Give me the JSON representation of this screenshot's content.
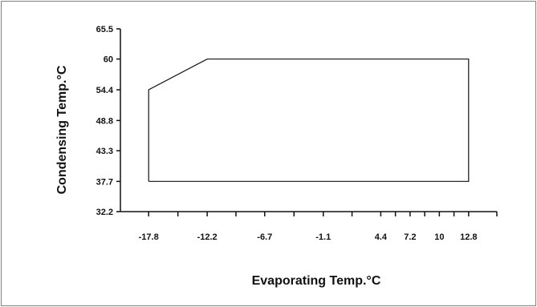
{
  "chart_data": {
    "type": "line",
    "title": "",
    "xlabel": "Evaporating Temp.°C",
    "ylabel": "Condensing Temp.°C",
    "xticks": [
      "-17.8",
      "-12.2",
      "-6.7",
      "-1.1",
      "4.4",
      "7.2",
      "10",
      "12.8"
    ],
    "xtick_values": [
      -17.8,
      -12.2,
      -6.7,
      -1.1,
      4.4,
      7.2,
      10,
      12.8
    ],
    "yticks": [
      "65.5",
      "60",
      "54.4",
      "48.8",
      "43.3",
      "37.7",
      "32.2"
    ],
    "ytick_values": [
      65.5,
      60,
      54.4,
      48.8,
      43.3,
      37.7,
      32.2
    ],
    "xlim": [
      -20.5,
      15.5
    ],
    "ylim": [
      32.2,
      65.5
    ],
    "grid": false,
    "series": [
      {
        "values": [
          {
            "x": -17.8,
            "y": 37.7
          },
          {
            "x": -17.8,
            "y": 54.4
          },
          {
            "x": -12.2,
            "y": 60
          },
          {
            "x": 12.8,
            "y": 60
          },
          {
            "x": 12.8,
            "y": 37.7
          },
          {
            "x": -17.8,
            "y": 37.7
          }
        ]
      }
    ]
  }
}
